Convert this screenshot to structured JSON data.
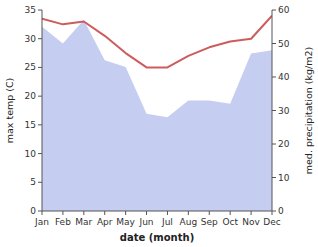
{
  "chart_data": {
    "type": "line",
    "categories": [
      "Jan",
      "Feb",
      "Mar",
      "Apr",
      "May",
      "Jun",
      "Jul",
      "Aug",
      "Sep",
      "Oct",
      "Nov",
      "Dec"
    ],
    "xlabel": "date (month)",
    "ylabel": "max temp (C)",
    "y2label": "med. precipitation (kg/m2)",
    "ylim": [
      0,
      35
    ],
    "yticks": [
      0,
      5,
      10,
      15,
      20,
      25,
      30,
      35
    ],
    "y2lim": [
      0,
      60
    ],
    "y2ticks": [
      0,
      10,
      20,
      30,
      40,
      50,
      60
    ],
    "grid": false,
    "series": [
      {
        "type": "area",
        "axis": "y2",
        "color": "#c5cdf0",
        "values": [
          55,
          50,
          57,
          45,
          43,
          29,
          28,
          33,
          33,
          32,
          47,
          48
        ]
      },
      {
        "type": "line",
        "color": "#cd5c5c",
        "values": [
          33.5,
          32.5,
          33.0,
          30.5,
          27.5,
          25.0,
          25.0,
          27.0,
          28.5,
          29.5,
          30.0,
          34.0
        ]
      }
    ]
  }
}
